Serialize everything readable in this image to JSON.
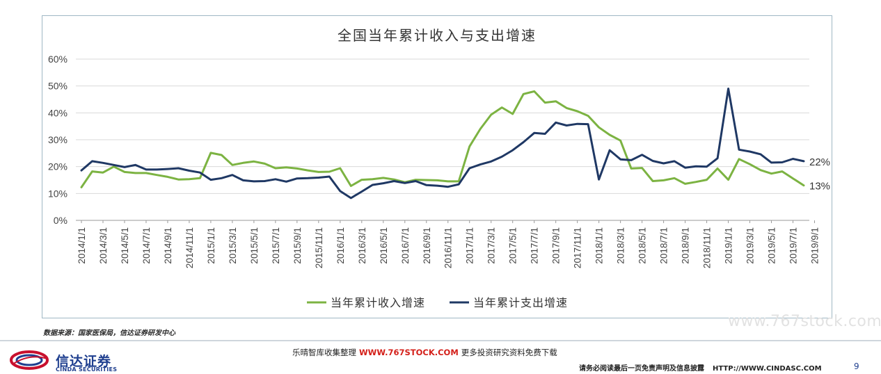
{
  "chart_data": {
    "type": "line",
    "title": "全国当年累计收入与支出增速",
    "xlabel": "",
    "ylabel": "",
    "ylim": [
      0,
      60
    ],
    "yticks": [
      "0%",
      "10%",
      "20%",
      "30%",
      "40%",
      "50%",
      "60%"
    ],
    "grid": true,
    "legend_position": "bottom",
    "x_tick_labels": [
      "2014/1/1",
      "2014/3/1",
      "2014/5/1",
      "2014/7/1",
      "2014/9/1",
      "2014/11/1",
      "2015/1/1",
      "2015/3/1",
      "2015/5/1",
      "2015/7/1",
      "2015/9/1",
      "2015/11/1",
      "2016/1/1",
      "2016/3/1",
      "2016/5/1",
      "2016/7/1",
      "2016/9/1",
      "2016/11/1",
      "2017/1/1",
      "2017/3/1",
      "2017/5/1",
      "2017/7/1",
      "2017/9/1",
      "2017/11/1",
      "2018/1/1",
      "2018/3/1",
      "2018/5/1",
      "2018/7/1",
      "2018/9/1",
      "2018/11/1",
      "2019/1/1",
      "2019/3/1",
      "2019/5/1",
      "2019/7/1",
      "2019/9/1"
    ],
    "series": [
      {
        "name": "当年累计收入增速",
        "color": "#7cb342",
        "values": [
          12.3,
          18.2,
          17.8,
          20.0,
          18.0,
          17.6,
          17.6,
          16.9,
          16.2,
          15.2,
          15.3,
          15.7,
          25.1,
          24.3,
          20.6,
          21.4,
          21.9,
          21.1,
          19.4,
          19.7,
          19.3,
          18.6,
          18.0,
          18.1,
          19.4,
          12.8,
          15.1,
          15.3,
          15.8,
          15.2,
          14.2,
          15.1,
          15.0,
          14.9,
          14.5,
          14.5,
          27.5,
          34.0,
          39.3,
          42.0,
          39.6,
          47.0,
          48.0,
          43.8,
          44.3,
          41.8,
          40.6,
          38.9,
          34.6,
          31.8,
          29.7,
          19.3,
          19.5,
          14.6,
          14.9,
          15.7,
          13.6,
          14.3,
          15.1,
          19.3,
          15.1,
          22.8,
          20.9,
          18.7,
          17.4,
          18.2,
          15.6,
          13.0
        ],
        "end_label": "13%"
      },
      {
        "name": "当年累计支出增速",
        "color": "#1f3864",
        "values": [
          18.6,
          22.0,
          21.4,
          20.6,
          19.8,
          20.6,
          18.9,
          18.9,
          19.1,
          19.4,
          18.5,
          17.8,
          15.1,
          15.7,
          16.9,
          14.9,
          14.5,
          14.6,
          15.3,
          14.4,
          15.6,
          15.7,
          15.9,
          16.3,
          10.9,
          8.3,
          10.7,
          13.2,
          13.8,
          14.6,
          13.9,
          14.6,
          13.1,
          12.9,
          12.5,
          13.4,
          19.4,
          20.8,
          21.9,
          23.7,
          26.1,
          29.1,
          32.5,
          32.2,
          36.4,
          35.3,
          35.9,
          35.8,
          15.2,
          26.1,
          22.7,
          22.4,
          24.4,
          22.1,
          21.2,
          22.0,
          19.6,
          20.1,
          20.0,
          23.1,
          49.0,
          26.3,
          25.6,
          24.6,
          21.5,
          21.6,
          22.9,
          22.0
        ],
        "end_label": "22%"
      }
    ]
  },
  "footer": {
    "source_note": "数据来源：国家医保局，信达证券研发中心",
    "watermark": "www.767stock.com",
    "logo_cn": "信达证券",
    "logo_en": "CINDA SECURITIES",
    "promo_left": "乐晴智库收集整理",
    "promo_site": "WWW.767STOCK.COM",
    "promo_right": "更多投资研究资料免费下载",
    "disclaimer": "请务必阅读最后一页免责声明及信息披露",
    "disclaimer_url": "HTTP://WWW.CINDASC.COM",
    "page_number": "9"
  }
}
